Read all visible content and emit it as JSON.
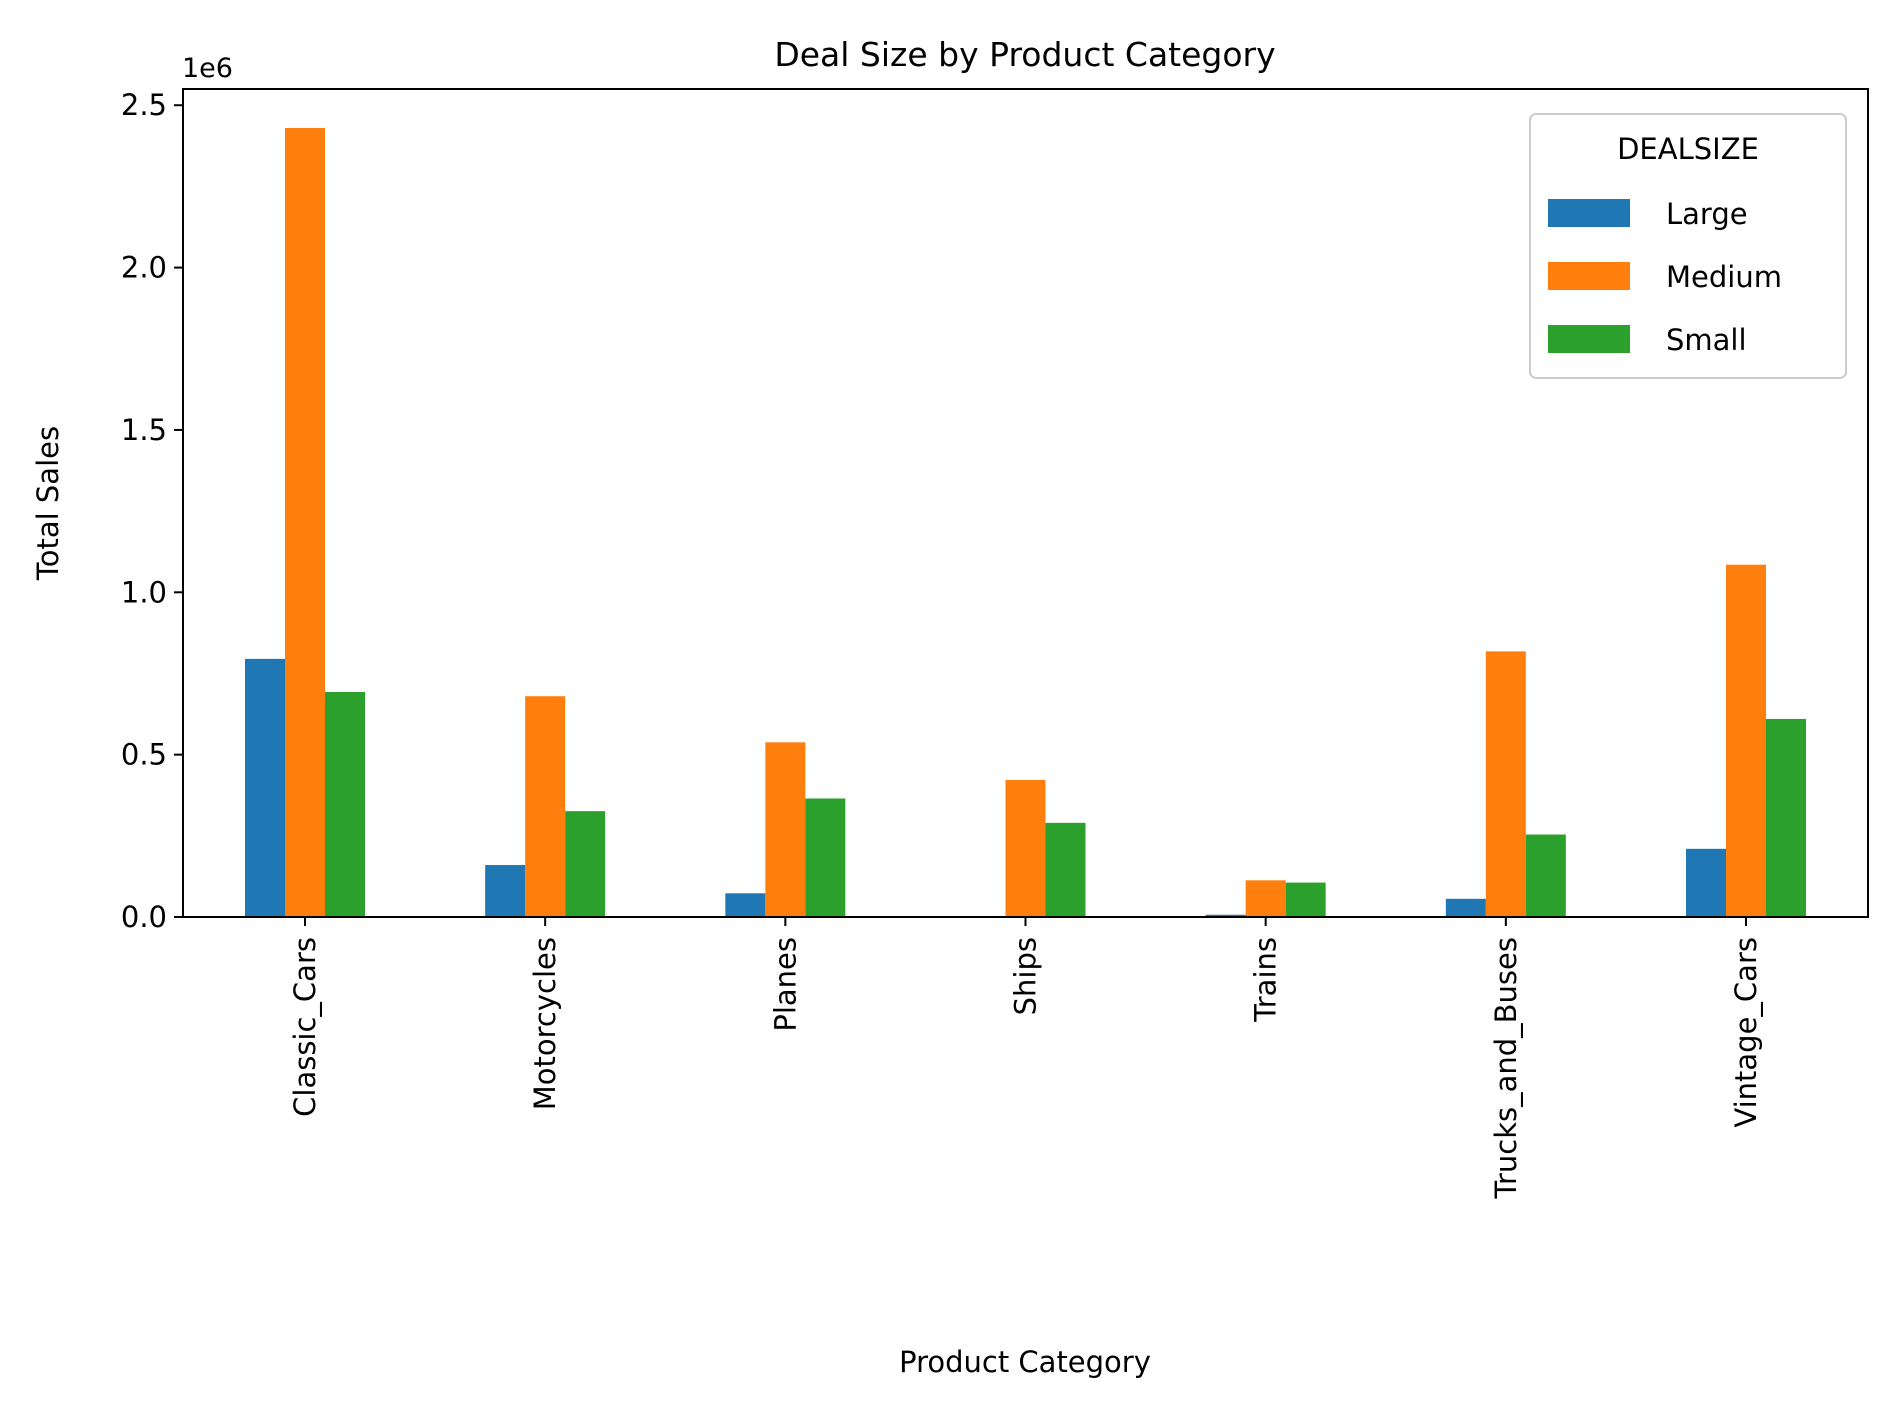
{
  "chart_data": {
    "type": "bar",
    "title": "Deal Size by Product Category",
    "xlabel": "Product Category",
    "ylabel": "Total Sales",
    "y_offset_label": "1e6",
    "ylim": [
      0,
      2.55
    ],
    "yticks": [
      "0.0",
      "0.5",
      "1.0",
      "1.5",
      "2.0",
      "2.5"
    ],
    "grid": false,
    "legend_position": "top-right",
    "legend_title": "DEALSIZE",
    "categories": [
      "Classic_Cars",
      "Motorcycles",
      "Planes",
      "Ships",
      "Trains",
      "Trucks_and_Buses",
      "Vintage_Cars"
    ],
    "series": [
      {
        "name": "Large",
        "color": "#1f77b4",
        "values": [
          0.795,
          0.16,
          0.073,
          0.0,
          0.007,
          0.056,
          0.21
        ]
      },
      {
        "name": "Medium",
        "color": "#ff7f0e",
        "values": [
          2.43,
          0.68,
          0.538,
          0.422,
          0.113,
          0.818,
          1.085
        ]
      },
      {
        "name": "Small",
        "color": "#2ca02c",
        "values": [
          0.693,
          0.326,
          0.365,
          0.29,
          0.106,
          0.254,
          0.61
        ]
      }
    ]
  }
}
